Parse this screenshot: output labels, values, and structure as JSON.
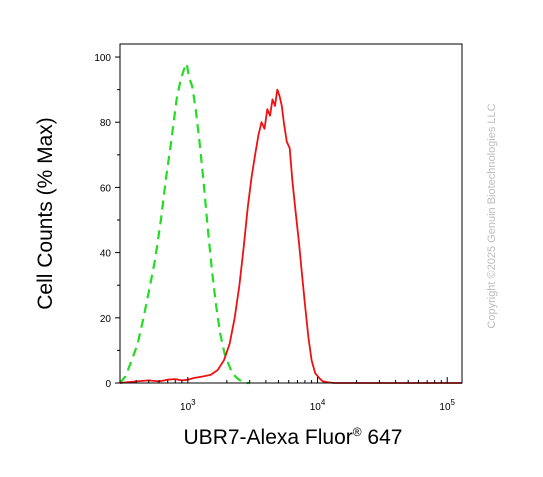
{
  "chart_data": {
    "type": "line",
    "title": "",
    "xlabel": "UBR7-Alexa Fluor",
    "xlabel_superscript": "®",
    "xlabel_suffix": " 647",
    "ylabel": "Cell Counts (% Max)",
    "x_scale": "log",
    "xlim": [
      300,
      130000
    ],
    "ylim": [
      0,
      104
    ],
    "x_ticks": [
      {
        "value": 1000,
        "base": "10",
        "exp": "3"
      },
      {
        "value": 10000,
        "base": "10",
        "exp": "4"
      },
      {
        "value": 100000,
        "base": "10",
        "exp": "5"
      }
    ],
    "y_ticks": [
      0,
      20,
      40,
      60,
      80,
      100
    ],
    "grid": false,
    "legend": "none",
    "series": [
      {
        "style": "dashed",
        "color": "#22dd22",
        "x": [
          300,
          330,
          370,
          410,
          450,
          500,
          560,
          620,
          680,
          750,
          820,
          880,
          930,
          980,
          1020,
          1080,
          1150,
          1230,
          1320,
          1420,
          1530,
          1650,
          1780,
          1920,
          2050,
          2200,
          2400,
          2600,
          2800,
          3000
        ],
        "y": [
          0,
          2,
          7,
          12,
          19,
          28,
          38,
          50,
          63,
          75,
          87,
          93,
          96,
          98,
          94,
          91,
          84,
          74,
          62,
          48,
          35,
          24,
          15,
          9,
          6,
          3,
          1.5,
          0.5,
          0,
          0
        ]
      },
      {
        "style": "solid",
        "color": "#ee1111",
        "x": [
          300,
          400,
          500,
          600,
          700,
          800,
          900,
          1000,
          1100,
          1300,
          1500,
          1700,
          1900,
          2100,
          2300,
          2500,
          2700,
          2900,
          3100,
          3300,
          3500,
          3700,
          3900,
          4100,
          4300,
          4500,
          4700,
          4900,
          5100,
          5300,
          5500,
          5800,
          6100,
          6400,
          6800,
          7200,
          7600,
          8000,
          8500,
          9000,
          9600,
          10300,
          11000,
          12000,
          13500,
          15000,
          20000,
          30000,
          50000,
          130000
        ],
        "y": [
          0,
          0.5,
          0.8,
          0.5,
          1,
          1.2,
          0.8,
          1,
          1.5,
          2,
          2.5,
          4,
          7,
          12,
          20,
          30,
          42,
          54,
          63,
          70,
          76,
          80,
          78,
          84,
          82,
          87,
          85,
          90,
          88,
          85,
          80,
          74,
          72,
          62,
          52,
          43,
          33,
          24,
          14,
          7,
          3,
          1.5,
          0.5,
          0.2,
          0,
          0,
          0,
          0,
          0,
          0
        ]
      }
    ]
  },
  "watermark": "Copyright ©2025 Genuin Biotechnologies LLC"
}
